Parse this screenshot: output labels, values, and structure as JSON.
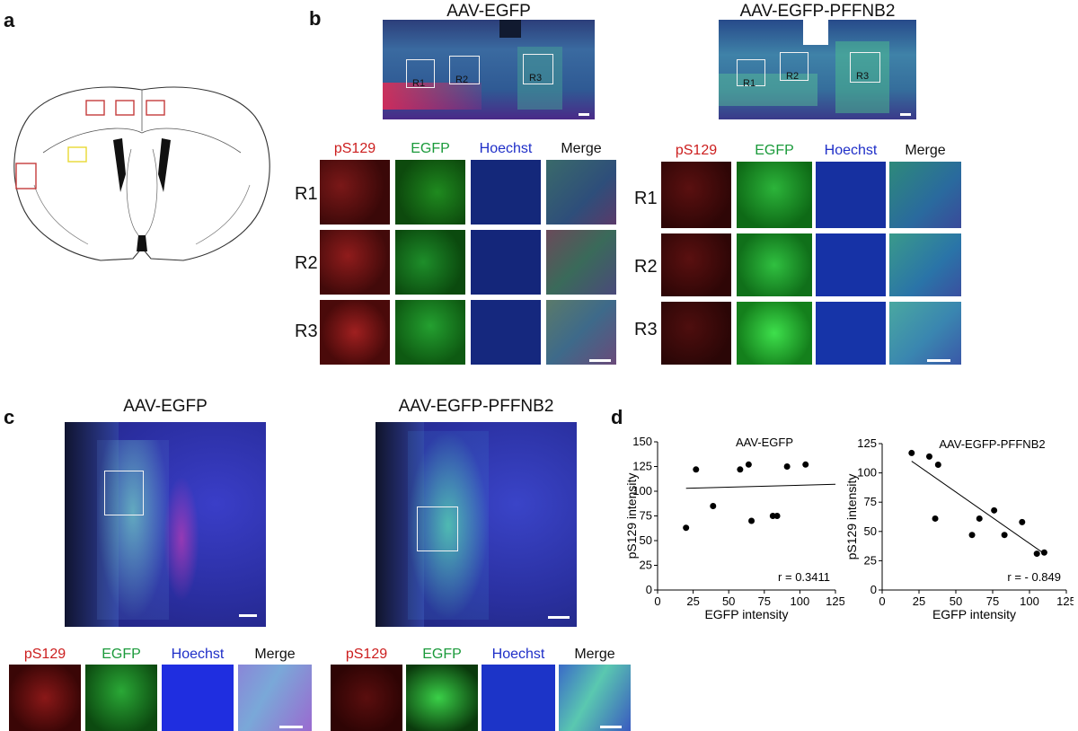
{
  "panels": {
    "a": {
      "label": "a"
    },
    "b": {
      "label": "b",
      "left_title": "AAV-EGFP",
      "right_title": "AAV-EGFP-PFFNB2",
      "roi_labels": [
        "R1",
        "R2",
        "R3"
      ],
      "channels": [
        "pS129",
        "EGFP",
        "Hoechst",
        "Merge"
      ],
      "rows": [
        "R1",
        "R2",
        "R3"
      ]
    },
    "c": {
      "label": "c",
      "left_title": "AAV-EGFP",
      "right_title": "AAV-EGFP-PFFNB2",
      "channels": [
        "pS129",
        "EGFP",
        "Hoechst",
        "Merge"
      ]
    },
    "d": {
      "label": "d"
    }
  },
  "colors": {
    "red": "#cc1e1e",
    "green": "#1a9a3a",
    "blue": "#1f2fc8",
    "roi_red": "#c43c3c",
    "roi_yellow": "#e8d832"
  },
  "chart_data": [
    {
      "type": "scatter",
      "title": "AAV-EGFP",
      "xlabel": "EGFP intensity",
      "ylabel": "pS129 intensity",
      "xlim": [
        0,
        125
      ],
      "ylim": [
        0,
        150
      ],
      "xticks": [
        0,
        25,
        50,
        75,
        100,
        125
      ],
      "yticks": [
        0,
        25,
        50,
        75,
        100,
        125,
        150
      ],
      "points": [
        [
          20,
          63
        ],
        [
          27,
          122
        ],
        [
          39,
          85
        ],
        [
          58,
          122
        ],
        [
          64,
          127
        ],
        [
          66,
          70
        ],
        [
          81,
          75
        ],
        [
          84,
          75
        ],
        [
          91,
          125
        ],
        [
          104,
          127
        ]
      ],
      "fit": [
        [
          20,
          103
        ],
        [
          125,
          107
        ]
      ],
      "annotation": "r = 0.3411"
    },
    {
      "type": "scatter",
      "title": "AAV-EGFP-PFFNB2",
      "xlabel": "EGFP intensity",
      "ylabel": "pS129 intensity",
      "xlim": [
        0,
        125
      ],
      "ylim": [
        0,
        125
      ],
      "xticks": [
        0,
        25,
        50,
        75,
        100,
        125
      ],
      "yticks": [
        0,
        25,
        50,
        75,
        100,
        125
      ],
      "points": [
        [
          20,
          117
        ],
        [
          32,
          114
        ],
        [
          38,
          107
        ],
        [
          36,
          61
        ],
        [
          61,
          47
        ],
        [
          66,
          61
        ],
        [
          76,
          68
        ],
        [
          83,
          47
        ],
        [
          95,
          58
        ],
        [
          105,
          31
        ],
        [
          110,
          32
        ]
      ],
      "fit": [
        [
          20,
          110
        ],
        [
          110,
          31
        ]
      ],
      "annotation": "r = - 0.849"
    }
  ]
}
